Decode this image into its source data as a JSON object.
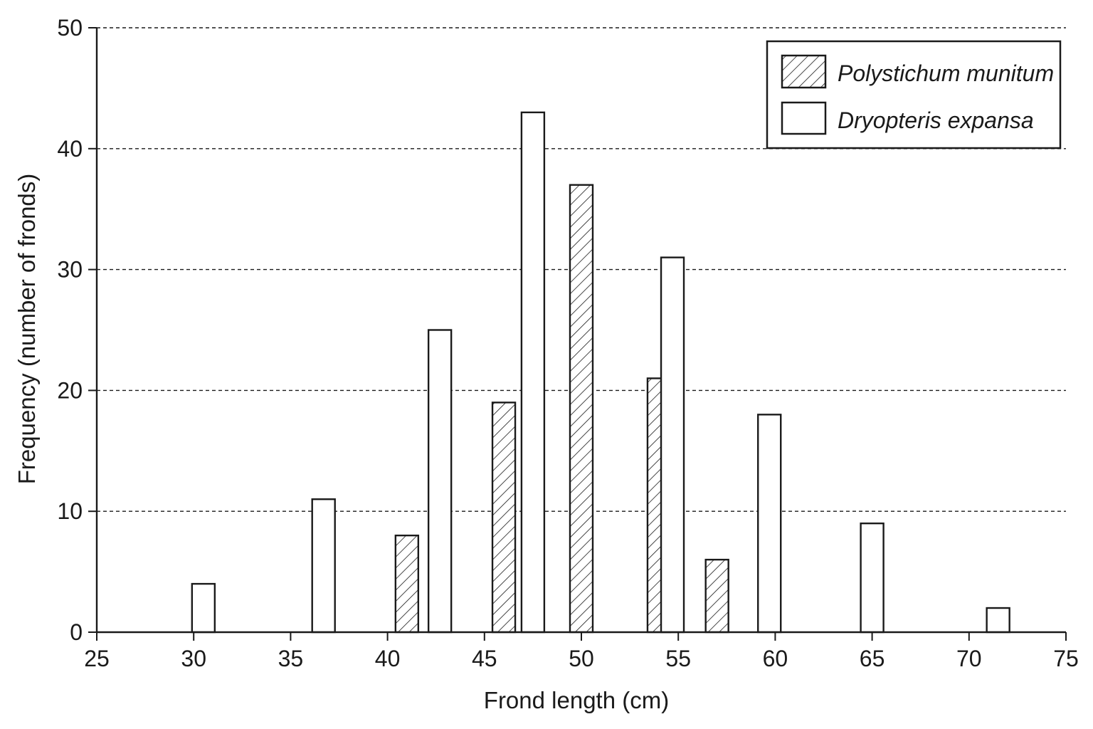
{
  "chart_data": {
    "type": "bar",
    "xlabel": "Frond length (cm)",
    "ylabel": "Frequency (number of fronds)",
    "xlim": [
      25,
      75
    ],
    "ylim": [
      0,
      50
    ],
    "xticks": [
      25,
      30,
      35,
      40,
      45,
      50,
      55,
      60,
      65,
      70,
      75
    ],
    "yticks": [
      0,
      10,
      20,
      30,
      40,
      50
    ],
    "grid": "horizontal dashed",
    "legend_position": "top-right",
    "series": [
      {
        "name": "Polystichum munitum",
        "pattern": "hatched",
        "x": [
          41,
          46,
          50,
          54,
          57
        ],
        "values": [
          8,
          19,
          37,
          21,
          6
        ]
      },
      {
        "name": "Dryopteris expansa",
        "pattern": "open",
        "x": [
          30.5,
          36.7,
          42.7,
          47.5,
          54.7,
          59.7,
          65,
          71.5
        ],
        "values": [
          4,
          11,
          25,
          43,
          31,
          18,
          9,
          2
        ]
      }
    ],
    "colors": {
      "outline": "#1a1a1a",
      "fill_open": "#ffffff"
    }
  }
}
